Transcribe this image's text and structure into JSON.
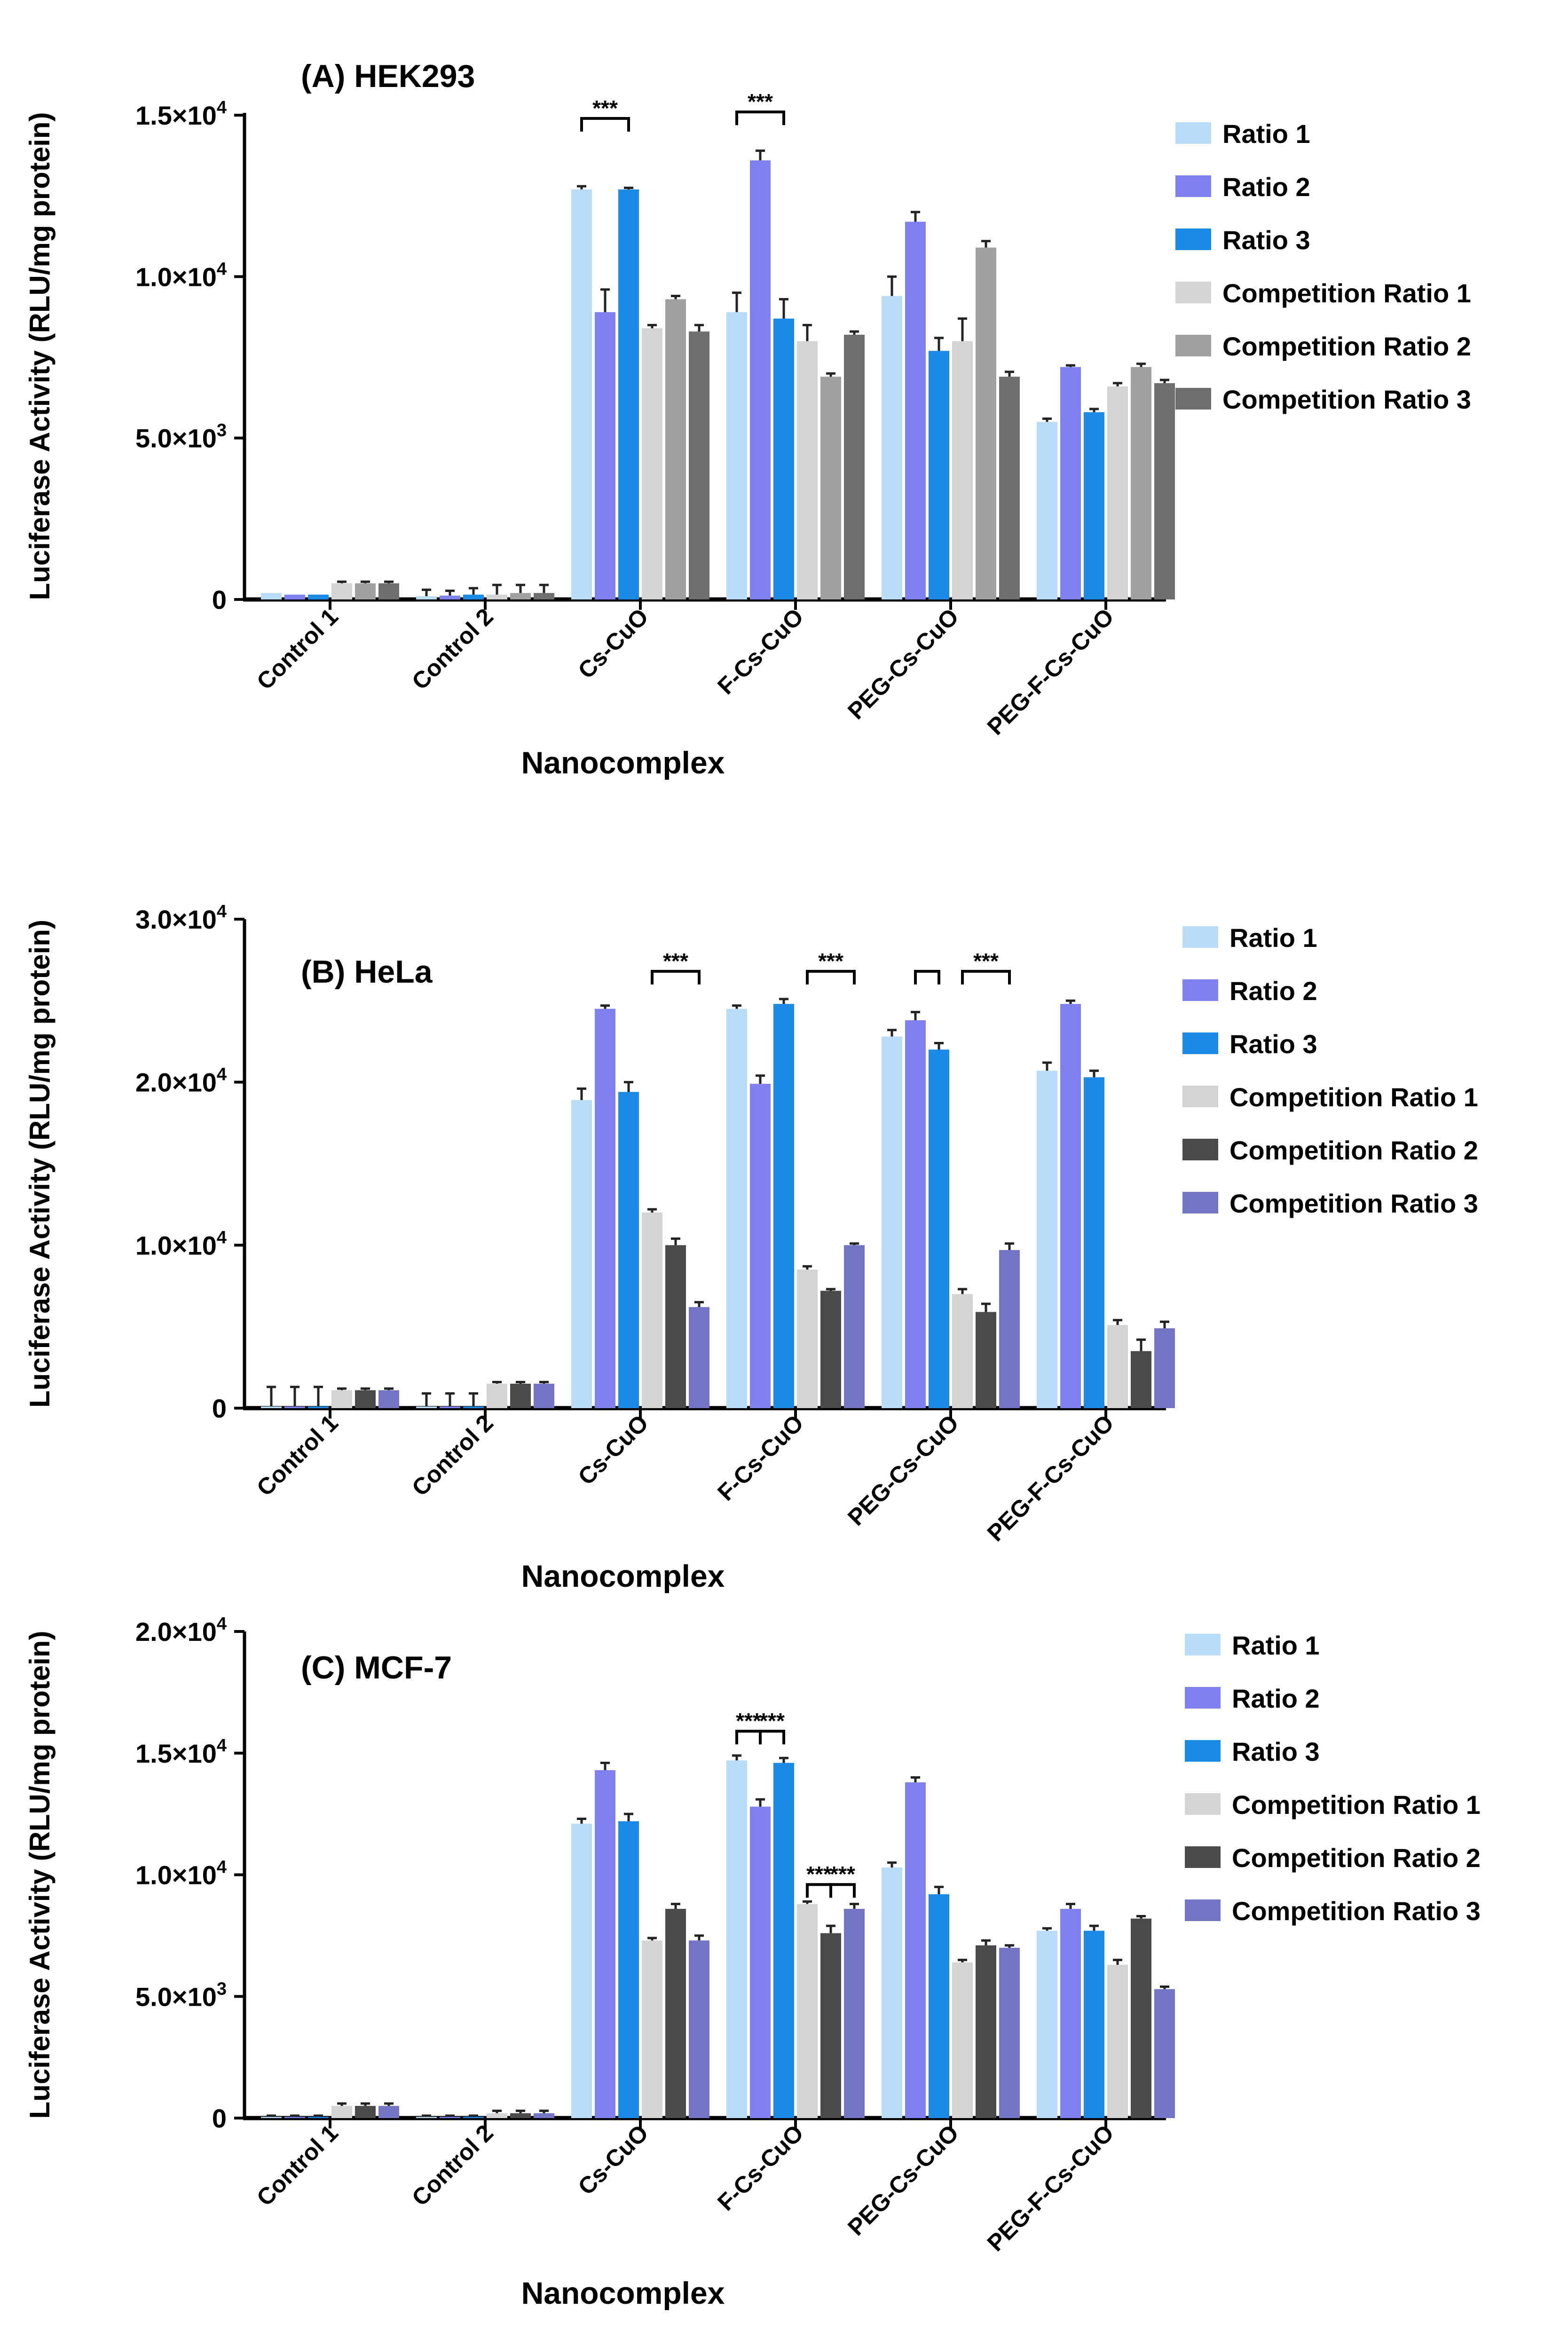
{
  "chart_data": [
    {
      "type": "bar",
      "title": "(A) HEK293",
      "xlabel": "Nanocomplex",
      "ylabel": "Luciferase Activity (RLU/mg protein)",
      "ylim": [
        0,
        15000
      ],
      "yticks": [
        0,
        5000,
        10000,
        15000
      ],
      "ytick_labels": [
        {
          "m": "0",
          "e": ""
        },
        {
          "m": "5.0×10",
          "e": "3"
        },
        {
          "m": "1.0×10",
          "e": "4"
        },
        {
          "m": "1.5×10",
          "e": "4"
        }
      ],
      "legend_position": "right",
      "categories": [
        "Control 1",
        "Control 2",
        "Cs-CuO",
        "F-Cs-CuO",
        "PEG-Cs-CuO",
        "PEG-F-Cs-CuO"
      ],
      "series": [
        {
          "name": "Ratio 1",
          "color": "#b9dcf8",
          "values": [
            200,
            100,
            12700,
            8900,
            9400,
            5500
          ],
          "errors": [
            0,
            200,
            100,
            600,
            600,
            100
          ]
        },
        {
          "name": "Ratio 2",
          "color": "#8080f0",
          "values": [
            150,
            120,
            8900,
            13600,
            11700,
            7200
          ],
          "errors": [
            0,
            150,
            700,
            300,
            300,
            50
          ]
        },
        {
          "name": "Ratio 3",
          "color": "#1a8ae6",
          "values": [
            150,
            150,
            12700,
            8700,
            7700,
            5800
          ],
          "errors": [
            0,
            200,
            50,
            600,
            400,
            100
          ]
        },
        {
          "name": "Competition Ratio 1",
          "color": "#d4d4d4",
          "values": [
            500,
            150,
            8400,
            8000,
            8000,
            6600
          ],
          "errors": [
            50,
            300,
            100,
            500,
            700,
            100
          ]
        },
        {
          "name": "Competition Ratio 2",
          "color": "#a0a0a0",
          "values": [
            500,
            200,
            9300,
            6900,
            10900,
            7200
          ],
          "errors": [
            50,
            250,
            100,
            100,
            200,
            100
          ]
        },
        {
          "name": "Competition Ratio 3",
          "color": "#6e6e6e",
          "values": [
            500,
            200,
            8300,
            8200,
            6900,
            6700
          ],
          "errors": [
            50,
            250,
            200,
            100,
            150,
            100
          ]
        }
      ],
      "significance": [
        {
          "label": "***",
          "cat": 2,
          "from": 0,
          "to": 2,
          "y": 14900
        },
        {
          "label": "***",
          "cat": 3,
          "from": 0,
          "to": 2,
          "y": 15100
        }
      ]
    },
    {
      "type": "bar",
      "title": "(B) HeLa",
      "xlabel": "Nanocomplex",
      "ylabel": "Luciferase Activity (RLU/mg protein)",
      "ylim": [
        0,
        30000
      ],
      "yticks": [
        0,
        10000,
        20000,
        30000
      ],
      "ytick_labels": [
        {
          "m": "0",
          "e": ""
        },
        {
          "m": "1.0×10",
          "e": "4"
        },
        {
          "m": "2.0×10",
          "e": "4"
        },
        {
          "m": "3.0×10",
          "e": "4"
        }
      ],
      "legend_position": "right",
      "categories": [
        "Control 1",
        "Control 2",
        "Cs-CuO",
        "F-Cs-CuO",
        "PEG-Cs-CuO",
        "PEG-F-Cs-CuO"
      ],
      "series": [
        {
          "name": "Ratio 1",
          "color": "#b9dcf8",
          "values": [
            100,
            100,
            18900,
            24500,
            22800,
            20700
          ],
          "errors": [
            1200,
            800,
            700,
            200,
            400,
            500
          ]
        },
        {
          "name": "Ratio 2",
          "color": "#8080f0",
          "values": [
            100,
            100,
            24500,
            19900,
            23800,
            24800
          ],
          "errors": [
            1200,
            800,
            200,
            500,
            500,
            200
          ]
        },
        {
          "name": "Ratio 3",
          "color": "#1a8ae6",
          "values": [
            100,
            100,
            19400,
            24800,
            22000,
            20300
          ],
          "errors": [
            1200,
            800,
            600,
            300,
            400,
            400
          ]
        },
        {
          "name": "Competition Ratio 1",
          "color": "#d4d4d4",
          "values": [
            1100,
            1500,
            12000,
            8500,
            7000,
            5100
          ],
          "errors": [
            100,
            100,
            200,
            200,
            300,
            300
          ]
        },
        {
          "name": "Competition Ratio 2",
          "color": "#4a4a4a",
          "values": [
            1100,
            1500,
            10000,
            7200,
            5900,
            3500
          ],
          "errors": [
            100,
            100,
            400,
            100,
            500,
            700
          ]
        },
        {
          "name": "Competition Ratio 3",
          "color": "#7474c4",
          "values": [
            1100,
            1500,
            6200,
            10000,
            9700,
            4900
          ],
          "errors": [
            100,
            100,
            300,
            100,
            400,
            400
          ]
        }
      ],
      "significance": [
        {
          "label": "***",
          "cat": 2,
          "from": 3,
          "to": 5,
          "y": 26800
        },
        {
          "label": "***",
          "cat": 3,
          "from": 3,
          "to": 5,
          "y": 26800
        },
        {
          "label": "",
          "cat": 4,
          "from": 1,
          "to": 2,
          "y": 26800
        },
        {
          "label": "***",
          "cat": 4,
          "from": 3,
          "to": 5,
          "y": 26800
        }
      ]
    },
    {
      "type": "bar",
      "title": "(C) MCF-7",
      "xlabel": "Nanocomplex",
      "ylabel": "Luciferase Activity (RLU/mg protein)",
      "ylim": [
        0,
        20000
      ],
      "yticks": [
        0,
        5000,
        10000,
        15000,
        20000
      ],
      "ytick_labels": [
        {
          "m": "0",
          "e": ""
        },
        {
          "m": "5.0×10",
          "e": "3"
        },
        {
          "m": "1.0×10",
          "e": "4"
        },
        {
          "m": "1.5×10",
          "e": "4"
        },
        {
          "m": "2.0×10",
          "e": "4"
        }
      ],
      "legend_position": "right",
      "categories": [
        "Control 1",
        "Control 2",
        "Cs-CuO",
        "F-Cs-CuO",
        "PEG-Cs-CuO",
        "PEG-F-Cs-CuO"
      ],
      "series": [
        {
          "name": "Ratio 1",
          "color": "#b9dcf8",
          "values": [
            50,
            50,
            12100,
            14700,
            10300,
            7700
          ],
          "errors": [
            50,
            50,
            200,
            200,
            200,
            100
          ]
        },
        {
          "name": "Ratio 2",
          "color": "#8080f0",
          "values": [
            50,
            50,
            14300,
            12800,
            13800,
            8600
          ],
          "errors": [
            50,
            50,
            300,
            300,
            200,
            200
          ]
        },
        {
          "name": "Ratio 3",
          "color": "#1a8ae6",
          "values": [
            50,
            50,
            12200,
            14600,
            9200,
            7700
          ],
          "errors": [
            50,
            50,
            300,
            200,
            300,
            200
          ]
        },
        {
          "name": "Competition Ratio 1",
          "color": "#d4d4d4",
          "values": [
            500,
            200,
            7300,
            8800,
            6400,
            6300
          ],
          "errors": [
            100,
            100,
            100,
            100,
            100,
            200
          ]
        },
        {
          "name": "Competition Ratio 2",
          "color": "#4a4a4a",
          "values": [
            500,
            200,
            8600,
            7600,
            7100,
            8200
          ],
          "errors": [
            100,
            100,
            200,
            300,
            200,
            100
          ]
        },
        {
          "name": "Competition Ratio 3",
          "color": "#7474c4",
          "values": [
            500,
            200,
            7300,
            8600,
            7000,
            5300
          ],
          "errors": [
            100,
            100,
            200,
            200,
            100,
            100
          ]
        }
      ],
      "significance": [
        {
          "label": "***",
          "cat": 3,
          "from": 0,
          "to": 1,
          "y": 15900
        },
        {
          "label": "***",
          "cat": 3,
          "from": 1,
          "to": 2,
          "y": 15900
        },
        {
          "label": "***",
          "cat": 3,
          "from": 3,
          "to": 4,
          "y": 9600
        },
        {
          "label": "***",
          "cat": 3,
          "from": 4,
          "to": 5,
          "y": 9600
        }
      ]
    }
  ]
}
